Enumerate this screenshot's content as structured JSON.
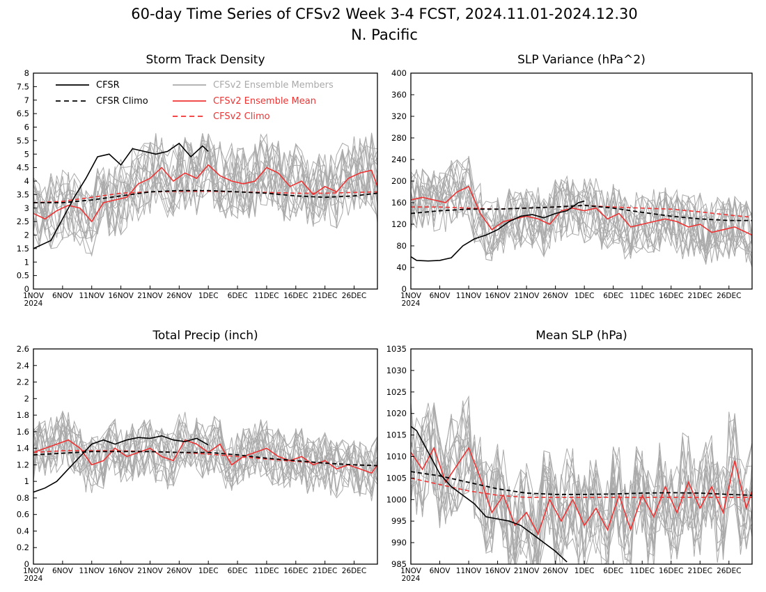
{
  "figure": {
    "title_line1": "60-day Time Series of CFSv2 Week 3-4 FCST, 2024.11.01-2024.12.30",
    "title_line2": "N. Pacific"
  },
  "colors": {
    "cfsr": "#000000",
    "member": "#aaaaaa",
    "mean": "#ee3333",
    "climo": "#ee3333"
  },
  "legend": {
    "cfsr": "CFSR",
    "cfsr_climo": "CFSR Climo",
    "members": "CFSv2 Ensemble Members",
    "mean": "CFSv2 Ensemble Mean",
    "climo": "CFSv2 Climo"
  },
  "xaxis": {
    "day_range": [
      0,
      59
    ],
    "tick_days": [
      0,
      5,
      10,
      15,
      20,
      25,
      30,
      35,
      40,
      45,
      50,
      55
    ],
    "tick_labels": [
      "1NOV",
      "6NOV",
      "11NOV",
      "16NOV",
      "21NOV",
      "26NOV",
      "1DEC",
      "6DEC",
      "11DEC",
      "16DEC",
      "21DEC",
      "26DEC"
    ],
    "year_label": "2024"
  },
  "chart_data": [
    {
      "type": "line",
      "title": "Storm Track Density",
      "ylim": [
        0,
        8
      ],
      "yticks": [
        "0",
        "0.5",
        "1",
        "1.5",
        "2",
        "2.5",
        "3",
        "3.5",
        "4",
        "4.5",
        "5",
        "5.5",
        "6",
        "6.5",
        "7",
        "7.5",
        "8"
      ],
      "ytick_values": [
        0,
        0.5,
        1,
        1.5,
        2,
        2.5,
        3,
        3.5,
        4,
        4.5,
        5,
        5.5,
        6,
        6.5,
        7,
        7.5,
        8
      ],
      "cfsr": {
        "x": [
          0,
          3,
          5,
          7,
          9,
          11,
          13,
          15,
          17,
          19,
          21,
          23,
          25,
          27,
          29,
          30
        ],
        "y": [
          1.5,
          1.8,
          2.6,
          3.4,
          4.1,
          4.9,
          5.0,
          4.6,
          5.2,
          5.1,
          5.0,
          5.1,
          5.4,
          4.9,
          5.3,
          5.1
        ]
      },
      "cfsr_climo": {
        "x": [
          0,
          5,
          10,
          15,
          20,
          25,
          30,
          35,
          40,
          45,
          50,
          55,
          59
        ],
        "y": [
          3.2,
          3.2,
          3.3,
          3.45,
          3.6,
          3.65,
          3.65,
          3.6,
          3.55,
          3.45,
          3.4,
          3.45,
          3.55
        ]
      },
      "mean": {
        "x": [
          0,
          2,
          4,
          6,
          8,
          10,
          12,
          14,
          16,
          18,
          20,
          22,
          24,
          26,
          28,
          30,
          32,
          34,
          36,
          38,
          40,
          42,
          44,
          46,
          48,
          50,
          52,
          54,
          56,
          58,
          59
        ],
        "y": [
          2.8,
          2.6,
          2.9,
          3.1,
          3.0,
          2.5,
          3.2,
          3.3,
          3.4,
          3.9,
          4.1,
          4.5,
          4.0,
          4.3,
          4.1,
          4.6,
          4.2,
          4.0,
          3.9,
          4.0,
          4.5,
          4.3,
          3.8,
          4.0,
          3.5,
          3.8,
          3.6,
          4.1,
          4.3,
          4.4,
          3.8
        ]
      },
      "climo": {
        "x": [
          0,
          5,
          10,
          15,
          20,
          25,
          30,
          35,
          40,
          45,
          50,
          55,
          59
        ],
        "y": [
          3.2,
          3.25,
          3.4,
          3.55,
          3.6,
          3.62,
          3.62,
          3.6,
          3.58,
          3.55,
          3.55,
          3.58,
          3.6
        ]
      },
      "members": {
        "count": 16,
        "base": 3.7,
        "spread": 1.4
      }
    },
    {
      "type": "line",
      "title": "SLP Variance (hPa^2)",
      "ylim": [
        0,
        400
      ],
      "yticks": [
        "0",
        "40",
        "80",
        "120",
        "160",
        "200",
        "240",
        "280",
        "320",
        "360",
        "400"
      ],
      "ytick_values": [
        0,
        40,
        80,
        120,
        160,
        200,
        240,
        280,
        320,
        360,
        400
      ],
      "cfsr": {
        "x": [
          0,
          1,
          3,
          5,
          7,
          9,
          11,
          13,
          15,
          17,
          19,
          21,
          23,
          25,
          27,
          29,
          30
        ],
        "y": [
          60,
          53,
          52,
          53,
          58,
          80,
          93,
          100,
          110,
          125,
          135,
          138,
          132,
          140,
          145,
          160,
          163
        ]
      },
      "cfsr_climo": {
        "x": [
          0,
          5,
          10,
          15,
          20,
          25,
          30,
          35,
          40,
          45,
          50,
          55,
          59
        ],
        "y": [
          140,
          145,
          148,
          148,
          150,
          152,
          155,
          150,
          142,
          135,
          130,
          127,
          127
        ]
      },
      "mean": {
        "x": [
          0,
          2,
          4,
          6,
          8,
          10,
          12,
          14,
          16,
          18,
          20,
          22,
          24,
          26,
          28,
          30,
          32,
          34,
          36,
          38,
          40,
          42,
          44,
          46,
          48,
          50,
          52,
          54,
          56,
          58,
          59
        ],
        "y": [
          165,
          170,
          165,
          160,
          180,
          190,
          140,
          110,
          125,
          130,
          135,
          130,
          120,
          145,
          150,
          145,
          150,
          130,
          140,
          115,
          120,
          125,
          130,
          125,
          115,
          120,
          105,
          110,
          115,
          105,
          100
        ]
      },
      "climo": {
        "x": [
          0,
          5,
          10,
          15,
          20,
          25,
          30,
          35,
          40,
          45,
          50,
          55,
          59
        ],
        "y": [
          152,
          152,
          150,
          148,
          150,
          152,
          155,
          152,
          150,
          148,
          143,
          137,
          133
        ]
      },
      "members": {
        "count": 16,
        "base": 140,
        "spread": 60
      }
    },
    {
      "type": "line",
      "title": "Total Precip (inch)",
      "ylim": [
        0,
        2.6
      ],
      "yticks": [
        "0",
        "0.2",
        "0.4",
        "0.6",
        "0.8",
        "1",
        "1.2",
        "1.4",
        "1.6",
        "1.8",
        "2",
        "2.2",
        "2.4",
        "2.6"
      ],
      "ytick_values": [
        0,
        0.2,
        0.4,
        0.6,
        0.8,
        1.0,
        1.2,
        1.4,
        1.6,
        1.8,
        2.0,
        2.2,
        2.4,
        2.6
      ],
      "cfsr": {
        "x": [
          0,
          2,
          4,
          6,
          8,
          10,
          12,
          14,
          16,
          18,
          20,
          22,
          24,
          26,
          28,
          30
        ],
        "y": [
          0.87,
          0.92,
          1.0,
          1.15,
          1.3,
          1.45,
          1.5,
          1.45,
          1.5,
          1.53,
          1.52,
          1.55,
          1.5,
          1.48,
          1.52,
          1.44
        ]
      },
      "cfsr_climo": {
        "x": [
          0,
          5,
          10,
          15,
          20,
          25,
          30,
          35,
          40,
          45,
          50,
          55,
          59
        ],
        "y": [
          1.32,
          1.34,
          1.36,
          1.36,
          1.36,
          1.35,
          1.35,
          1.32,
          1.28,
          1.25,
          1.22,
          1.2,
          1.19
        ]
      },
      "mean": {
        "x": [
          0,
          2,
          4,
          6,
          8,
          10,
          12,
          14,
          16,
          18,
          20,
          22,
          24,
          26,
          28,
          30,
          32,
          34,
          36,
          38,
          40,
          42,
          44,
          46,
          48,
          50,
          52,
          54,
          56,
          58,
          59
        ],
        "y": [
          1.35,
          1.4,
          1.45,
          1.5,
          1.4,
          1.2,
          1.25,
          1.4,
          1.3,
          1.35,
          1.4,
          1.3,
          1.25,
          1.5,
          1.45,
          1.35,
          1.45,
          1.2,
          1.3,
          1.35,
          1.4,
          1.3,
          1.25,
          1.3,
          1.2,
          1.25,
          1.15,
          1.2,
          1.15,
          1.1,
          1.2
        ]
      },
      "climo": {
        "x": [
          0,
          5,
          10,
          15,
          20,
          25,
          30,
          35,
          40,
          45,
          50,
          55,
          59
        ],
        "y": [
          1.35,
          1.37,
          1.37,
          1.37,
          1.36,
          1.35,
          1.33,
          1.3,
          1.27,
          1.24,
          1.22,
          1.2,
          1.19
        ]
      },
      "members": {
        "count": 16,
        "base": 1.3,
        "spread": 0.35
      }
    },
    {
      "type": "line",
      "title": "Mean SLP (hPa)",
      "ylim": [
        985,
        1035
      ],
      "yticks": [
        "985",
        "990",
        "995",
        "1000",
        "1005",
        "1010",
        "1015",
        "1020",
        "1025",
        "1030",
        "1035"
      ],
      "ytick_values": [
        985,
        990,
        995,
        1000,
        1005,
        1010,
        1015,
        1020,
        1025,
        1030,
        1035
      ],
      "cfsr": {
        "x": [
          0,
          1,
          3,
          5,
          7,
          9,
          11,
          13,
          15,
          17,
          19,
          21,
          23,
          25,
          27
        ],
        "y": [
          1017,
          1016,
          1011,
          1006,
          1003,
          1001,
          999,
          996,
          995.5,
          995,
          994,
          992,
          990,
          988,
          985.5
        ]
      },
      "cfsr_climo": {
        "x": [
          0,
          5,
          10,
          15,
          20,
          25,
          30,
          35,
          40,
          45,
          50,
          55,
          59
        ],
        "y": [
          1006.5,
          1005.5,
          1004,
          1002.5,
          1001.5,
          1001.2,
          1001.2,
          1001.3,
          1001.5,
          1001.6,
          1001.5,
          1001.2,
          1001
        ]
      },
      "mean": {
        "x": [
          0,
          2,
          4,
          6,
          8,
          10,
          12,
          14,
          16,
          18,
          20,
          22,
          24,
          26,
          28,
          30,
          32,
          34,
          36,
          38,
          40,
          42,
          44,
          46,
          48,
          50,
          52,
          54,
          56,
          58,
          59
        ],
        "y": [
          1011,
          1007,
          1012,
          1004,
          1008,
          1012,
          1005,
          997,
          1001,
          994,
          997,
          992,
          1000,
          995,
          1000,
          994,
          998,
          993,
          1001,
          993,
          1001,
          996,
          1003,
          997,
          1004,
          998,
          1003,
          997,
          1009,
          998,
          1002
        ]
      },
      "climo": {
        "x": [
          0,
          5,
          10,
          15,
          20,
          25,
          30,
          35,
          40,
          45,
          50,
          55,
          59
        ],
        "y": [
          1005,
          1003.5,
          1002,
          1001,
          1000.5,
          1000.5,
          1000.5,
          1000.5,
          1000.5,
          1000.5,
          1000.5,
          1000.5,
          1000.5
        ]
      },
      "members": {
        "count": 16,
        "base": 999,
        "spread": 12
      }
    }
  ]
}
